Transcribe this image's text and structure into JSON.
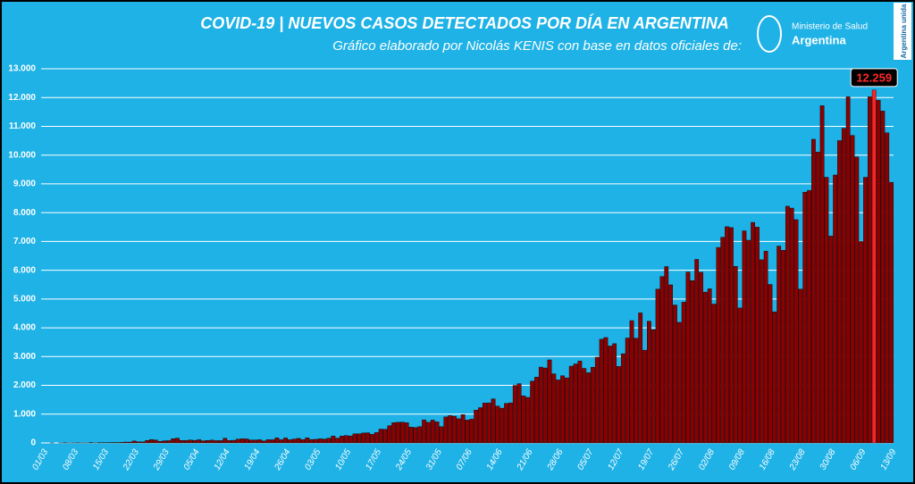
{
  "chart_data": {
    "type": "bar",
    "title": "COVID-19  |  NUEVOS CASOS DETECTADOS POR DÍA EN ARGENTINA",
    "subtitle": "Gráfico elaborado por Nicolás KENIS con base en datos oficiales de:",
    "logo": {
      "line1": "Ministerio de Salud",
      "line2": "Argentina"
    },
    "badge": "Argentina unida",
    "color": "#8b0000",
    "highlight_color": "#ff2222",
    "grid": true,
    "ylim": [
      0,
      13000
    ],
    "yticks": [
      0,
      {
        "value": 1000,
        "label": "1.000"
      },
      {
        "value": 2000,
        "label": "2.000"
      },
      {
        "value": 3000,
        "label": "3.000"
      },
      {
        "value": 4000,
        "label": "4.000"
      },
      {
        "value": 5000,
        "label": "5.000"
      },
      {
        "value": 6000,
        "label": "6.000"
      },
      {
        "value": 7000,
        "label": "7.000"
      },
      {
        "value": 8000,
        "label": "8.000"
      },
      {
        "value": 9000,
        "label": "9.000"
      },
      {
        "value": 10000,
        "label": "10.000"
      },
      {
        "value": 11000,
        "label": "11.000"
      },
      {
        "value": 12000,
        "label": "12.000"
      },
      {
        "value": 13000,
        "label": "13.000"
      }
    ],
    "categories": [
      "01/03",
      null,
      null,
      null,
      null,
      null,
      null,
      "08/03",
      null,
      null,
      null,
      null,
      null,
      null,
      "15/03",
      null,
      null,
      null,
      null,
      null,
      null,
      "22/03",
      null,
      null,
      null,
      null,
      null,
      null,
      "29/03",
      null,
      null,
      null,
      null,
      null,
      null,
      "05/04",
      null,
      null,
      null,
      null,
      null,
      null,
      "12/04",
      null,
      null,
      null,
      null,
      null,
      null,
      "19/04",
      null,
      null,
      null,
      null,
      null,
      null,
      "26/04",
      null,
      null,
      null,
      null,
      null,
      null,
      "03/05",
      null,
      null,
      null,
      null,
      null,
      null,
      "10/05",
      null,
      null,
      null,
      null,
      null,
      null,
      "17/05",
      null,
      null,
      null,
      null,
      null,
      null,
      "24/05",
      null,
      null,
      null,
      null,
      null,
      null,
      "31/05",
      null,
      null,
      null,
      null,
      null,
      null,
      "07/06",
      null,
      null,
      null,
      null,
      null,
      null,
      "14/06",
      null,
      null,
      null,
      null,
      null,
      null,
      "21/06",
      null,
      null,
      null,
      null,
      null,
      null,
      "28/06",
      null,
      null,
      null,
      null,
      null,
      null,
      "05/07",
      null,
      null,
      null,
      null,
      null,
      null,
      "12/07",
      null,
      null,
      null,
      null,
      null,
      null,
      "19/07",
      null,
      null,
      null,
      null,
      null,
      null,
      "26/07",
      null,
      null,
      null,
      null,
      null,
      null,
      "02/08",
      null,
      null,
      null,
      null,
      null,
      null,
      "09/08",
      null,
      null,
      null,
      null,
      null,
      null,
      "16/08",
      null,
      null,
      null,
      null,
      null,
      null,
      "23/08",
      null,
      null,
      null,
      null,
      null,
      null,
      "30/08",
      null,
      null,
      null,
      null,
      null,
      null,
      "06/09",
      null,
      null,
      null,
      null,
      null,
      null,
      "13/09"
    ],
    "values": [
      0,
      0,
      1,
      0,
      1,
      6,
      1,
      3,
      5,
      2,
      2,
      12,
      3,
      10,
      11,
      11,
      14,
      14,
      18,
      31,
      30,
      67,
      41,
      36,
      86,
      115,
      101,
      55,
      75,
      79,
      146,
      167,
      86,
      88,
      100,
      89,
      112,
      74,
      87,
      98,
      79,
      81,
      162,
      83,
      91,
      130,
      143,
      140,
      103,
      102,
      112,
      69,
      113,
      110,
      174,
      111,
      172,
      111,
      136,
      158,
      113,
      179,
      119,
      126,
      143,
      135,
      165,
      240,
      167,
      240,
      258,
      244,
      316,
      316,
      345,
      353,
      300,
      361,
      480,
      474,
      600,
      704,
      718,
      723,
      703,
      552,
      535,
      564,
      802,
      718,
      795,
      733,
      564,
      904,
      949,
      929,
      840,
      983,
      795,
      826,
      1141,
      1226,
      1386,
      1391,
      1531,
      1282,
      1208,
      1374,
      1393,
      2000,
      2060,
      1634,
      1581,
      2146,
      2285,
      2635,
      2606,
      2886,
      2401,
      2189,
      2335,
      2262,
      2667,
      2744,
      2845,
      2590,
      2439,
      2632,
      2979,
      3604,
      3663,
      3367,
      3449,
      2657,
      3099,
      3645,
      4250,
      3638,
      4518,
      3223,
      4231,
      3937,
      5344,
      5782,
      6127,
      5493,
      4792,
      4190,
      4890,
      5939,
      5641,
      6377,
      5929,
      5241,
      5355,
      4824,
      6792,
      7147,
      7513,
      7482,
      6134,
      4688,
      7369,
      7043,
      7663,
      7498,
      6365,
      6663,
      5507,
      4556,
      6840,
      6693,
      8225,
      8159,
      7759,
      5345,
      8713,
      8771,
      10550,
      10104,
      11717,
      9230,
      7187,
      9309,
      10504,
      10933,
      12026,
      10684,
      9936,
      7000,
      9230,
      12027,
      12259,
      11905,
      11531,
      10776,
      9056
    ],
    "value_labels": [
      null,
      null,
      null,
      null,
      null,
      null,
      null,
      null,
      null,
      null,
      null,
      null,
      null,
      null,
      null,
      null,
      null,
      null,
      null,
      null,
      null,
      null,
      null,
      null,
      null,
      null,
      null,
      null,
      null,
      null,
      null,
      null,
      null,
      null,
      null,
      null,
      null,
      null,
      null,
      null,
      null,
      null,
      null,
      null,
      null,
      null,
      null,
      null,
      null,
      null,
      null,
      null,
      null,
      null,
      null,
      null,
      null,
      null,
      null,
      null,
      null,
      null,
      null,
      null,
      null,
      null,
      null,
      null,
      null,
      null,
      null,
      null,
      null,
      null,
      null,
      null,
      null,
      null,
      null,
      null,
      null,
      null,
      null,
      null,
      null,
      null,
      null,
      null,
      null,
      null,
      null,
      null,
      null,
      null,
      null,
      null,
      null,
      null,
      null,
      null,
      null,
      null,
      null,
      null,
      null,
      null,
      null,
      null,
      null,
      null,
      null,
      null,
      null,
      null,
      null,
      null,
      null,
      null,
      null,
      null,
      null,
      null,
      null,
      null,
      null,
      null,
      null,
      null,
      null,
      null,
      null,
      null,
      null,
      null,
      null,
      null,
      null,
      null,
      null,
      null,
      null,
      null,
      null,
      null,
      null,
      null,
      null,
      null,
      null,
      null,
      null,
      null,
      null,
      null,
      null,
      null,
      null,
      null,
      null,
      null,
      null,
      null,
      null,
      null,
      null,
      null,
      null,
      null,
      null,
      null,
      null,
      null,
      null,
      null,
      null,
      null,
      null,
      null,
      null,
      null,
      null,
      null,
      null,
      null,
      null,
      null,
      null,
      null,
      null,
      null,
      null,
      null,
      "12.259",
      null,
      null,
      null,
      null
    ]
  }
}
